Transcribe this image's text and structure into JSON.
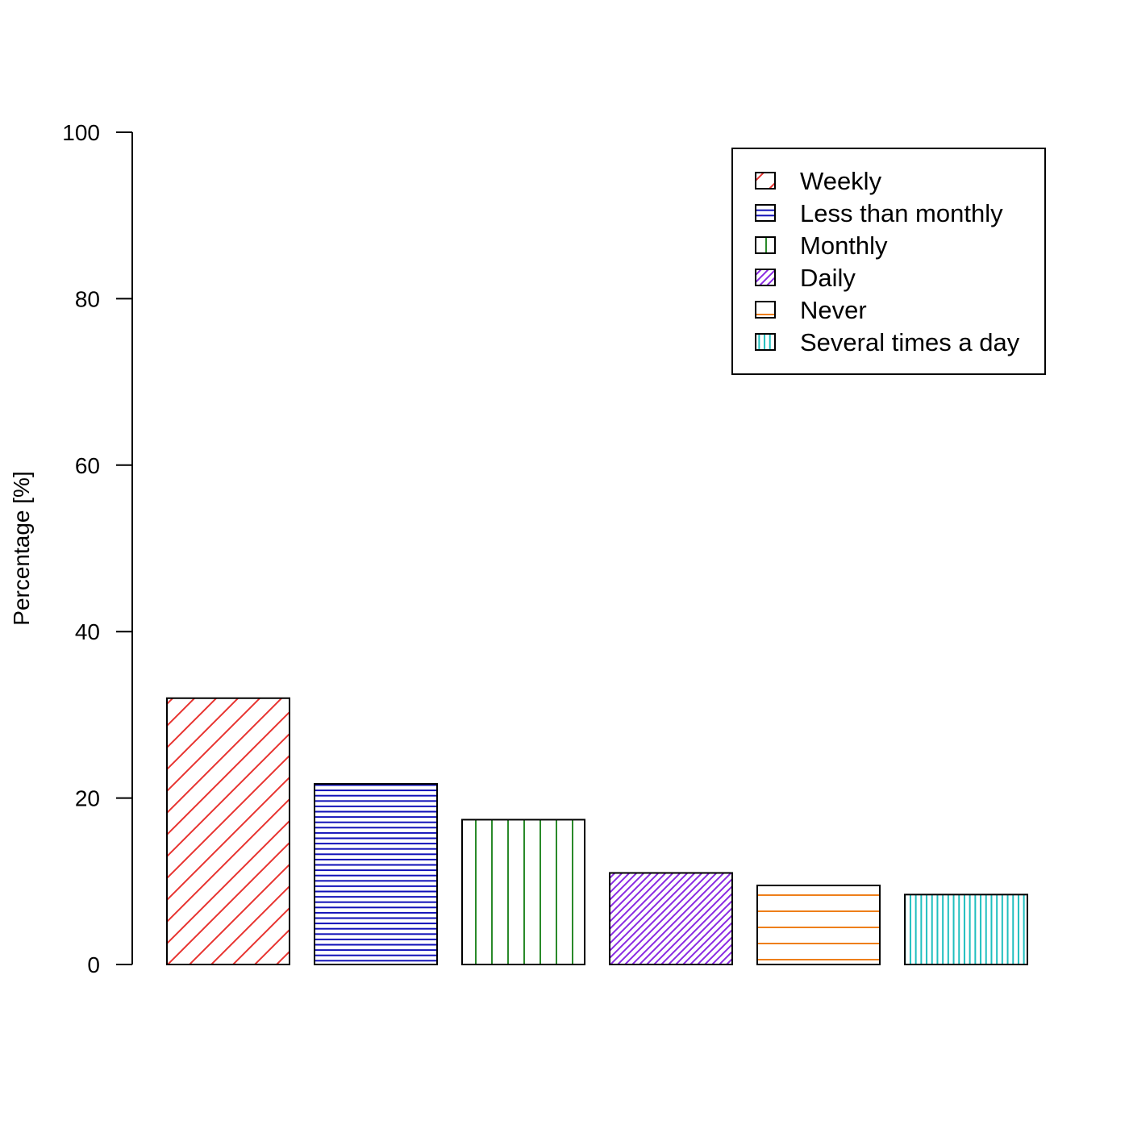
{
  "chart_data": {
    "type": "bar",
    "title": "",
    "xlabel": "",
    "ylabel": "Percentage [%]",
    "ylim": [
      0,
      100
    ],
    "yticks": [
      "0",
      "20",
      "40",
      "60",
      "80",
      "100"
    ],
    "grid": false,
    "legend_position": "top-right",
    "categories": [
      "Weekly",
      "Less than monthly",
      "Monthly",
      "Daily",
      "Never",
      "Several times a day"
    ],
    "values": [
      32,
      21.7,
      17.4,
      11,
      9.5,
      8.4
    ],
    "colors": [
      "#e8332f",
      "#1010b8",
      "#2a8a2a",
      "#8a2be2",
      "#ee7f1a",
      "#1fbfbf"
    ],
    "patterns": [
      "diagonal-wide",
      "horizontal-dense",
      "vertical-wide",
      "diagonal-dense",
      "horizontal-wide",
      "vertical-dense"
    ]
  }
}
